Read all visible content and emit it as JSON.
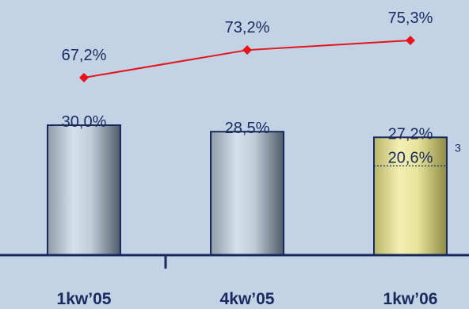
{
  "colors": {
    "background": "#c3d3e6",
    "axis": "#1a2a5e",
    "text": "#1a2a5e",
    "line": "#e8141b",
    "bar_gray": "#8e9aa7",
    "bar_highlight": "#d4e1eb",
    "bar_yellow": "#e6e39a"
  },
  "chart_data": {
    "type": "bar",
    "categories": [
      "1kw’05",
      "4kw’05",
      "1kw’06"
    ],
    "series": [
      {
        "values": [
          30.0,
          28.5,
          27.2
        ],
        "labels": [
          "30,0%",
          "28,5%",
          "27,2%"
        ]
      },
      {
        "values": [
          67.2,
          73.2,
          75.3
        ],
        "labels": [
          "67,2%",
          "73,2%",
          "75,3%"
        ]
      }
    ],
    "inner_marker": {
      "category_index": 2,
      "value": 20.6,
      "label": "20,6%",
      "footnote": "3"
    },
    "title": "",
    "xlabel": "",
    "ylabel": "",
    "bar_ylim": [
      0,
      34
    ],
    "line_ylim": [
      40,
      82
    ],
    "grid": false,
    "legend": "none"
  }
}
